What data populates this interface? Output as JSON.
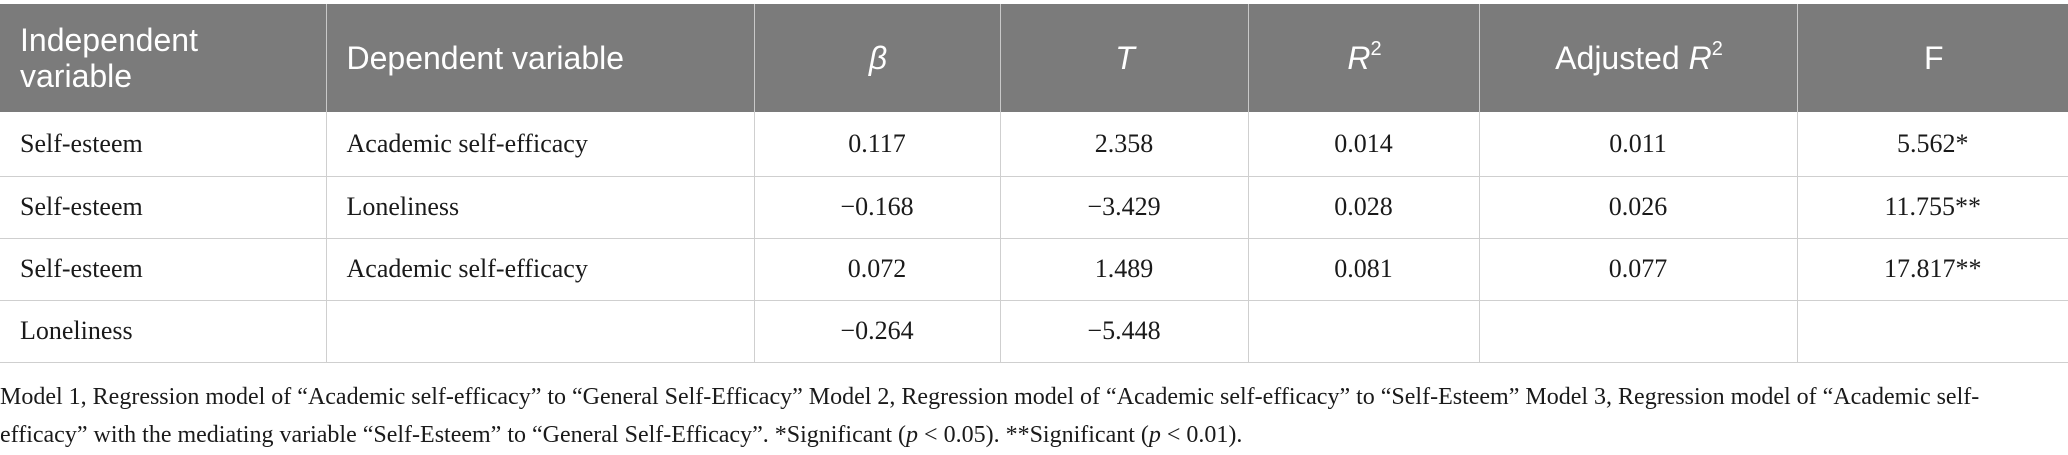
{
  "table": {
    "headers": [
      {
        "text": "Independent variable",
        "align": "left"
      },
      {
        "text": "Dependent variable",
        "align": "left"
      },
      {
        "text": "β",
        "align": "center",
        "italic": true
      },
      {
        "text": "T",
        "align": "center",
        "italic": true
      },
      {
        "base": "R",
        "sup": "2",
        "align": "center"
      },
      {
        "prefix": "Adjusted ",
        "base": "R",
        "sup": "2",
        "align": "center"
      },
      {
        "text": "F",
        "align": "center"
      }
    ],
    "rows": [
      [
        "Self-esteem",
        "Academic self-efficacy",
        "0.117",
        "2.358",
        "0.014",
        "0.011",
        "5.562*"
      ],
      [
        "Self-esteem",
        "Loneliness",
        "−0.168",
        "−3.429",
        "0.028",
        "0.026",
        "11.755**"
      ],
      [
        "Self-esteem",
        "Academic self-efficacy",
        "0.072",
        "1.489",
        "0.081",
        "0.077",
        "17.817**"
      ],
      [
        "Loneliness",
        "",
        "−0.264",
        "−5.448",
        "",
        "",
        ""
      ]
    ]
  },
  "footnote": {
    "main": "Model 1, Regression model of “Academic self-efficacy” to “General Self-Efficacy” Model 2, Regression model of “Academic self-efficacy” to “Self-Esteem” Model 3, Regression model of “Academic self-efficacy” with the mediating variable “Self-Esteem” to “General Self-Efficacy”. *Significant (",
    "p1": "p",
    "sig1": " < 0.05). **Significant (",
    "p2": "p",
    "sig2": " < 0.01)."
  }
}
